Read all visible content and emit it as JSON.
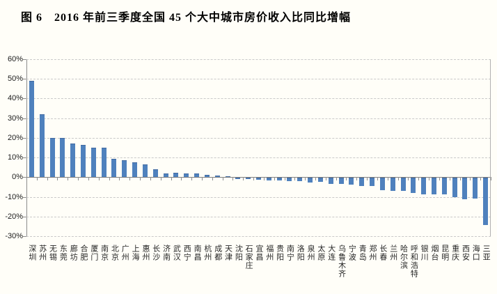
{
  "title": "图 6　2016 年前三季度全国 45 个大中城市房价收入比同比增幅",
  "chart_data": {
    "type": "bar",
    "title": "图 6　2016 年前三季度全国 45 个大中城市房价收入比同比增幅",
    "categories": [
      "深圳",
      "苏州",
      "无锡",
      "东莞",
      "廊坊",
      "合肥",
      "厦门",
      "南京",
      "北京",
      "广州",
      "上海",
      "惠州",
      "长沙",
      "济南",
      "武汉",
      "西宁",
      "南昌",
      "杭州",
      "成都",
      "天津",
      "沈阳",
      "石家庄",
      "宜昌",
      "福州",
      "贵阳",
      "南宁",
      "洛阳",
      "泉州",
      "太原",
      "大连",
      "乌鲁木齐",
      "宁波",
      "青岛",
      "郑州",
      "长春",
      "兰州",
      "哈尔滨",
      "呼和浩特",
      "银川",
      "烟台",
      "昆明",
      "重庆",
      "西安",
      "海口",
      "三亚"
    ],
    "values": [
      49,
      32,
      20,
      20,
      17,
      16.5,
      15,
      15,
      9.5,
      8.5,
      7.5,
      6.5,
      4,
      2,
      2.2,
      1.8,
      1.8,
      1.3,
      0.7,
      0.3,
      -1,
      -1.1,
      -1.2,
      -1.5,
      -1.5,
      -2,
      -2,
      -2.8,
      -2.4,
      -3.4,
      -3.5,
      -3.8,
      -4.6,
      -4.4,
      -6.5,
      -7,
      -6.9,
      -8.1,
      -8.9,
      -8.7,
      -8.9,
      -10.2,
      -11.2,
      -10.8,
      -24.5
    ],
    "unit": "percent",
    "xlabel": "",
    "ylabel": "",
    "ylim": [
      -30,
      60
    ],
    "ytick_step": 10,
    "ytick_labels": [
      "60%",
      "50%",
      "40%",
      "30%",
      "20%",
      "10%",
      "0%",
      "-10%",
      "-20%",
      "-30%"
    ],
    "legend": "none",
    "grid": "horizontal-dashed",
    "bar_color": "#4f81bd",
    "bar_border_color": "#41699f",
    "axis_color": "#8c8c8c",
    "grid_color": "#c9c9c9",
    "label_color": "#262626"
  }
}
